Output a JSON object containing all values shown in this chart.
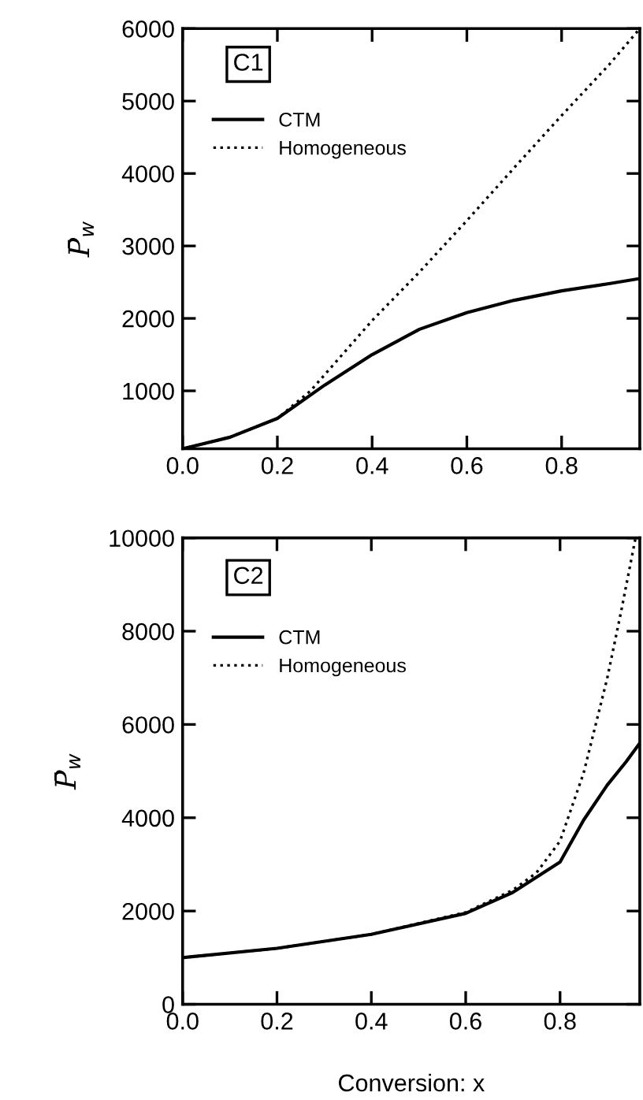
{
  "chart_data": [
    {
      "type": "line",
      "ylabel": "P̄$_{w}$",
      "annotations": [
        "C1"
      ],
      "legend": "top left",
      "xlim": [
        0,
        0.965
      ],
      "ylim": [
        200,
        6000
      ],
      "xticks": [
        {
          "value": 0.0,
          "label": "0.0"
        },
        0.2,
        0.4,
        0.6,
        0.8
      ],
      "yticks": [
        1000,
        2000,
        3000,
        4000,
        5000,
        6000
      ],
      "tick_labels": true,
      "series": [
        {
          "name": "CTM",
          "color": "#000000",
          "line_style": "solid",
          "x": [
            0,
            0.1,
            0.2,
            0.3,
            0.4,
            0.5,
            0.6,
            0.7,
            0.8,
            0.9,
            0.965
          ],
          "values": [
            200,
            360,
            620,
            1080,
            1500,
            1850,
            2080,
            2250,
            2380,
            2480,
            2550
          ]
        },
        {
          "name": "Homogeneous",
          "color": "#000000",
          "line_style": "dotted",
          "x": [
            0,
            0.1,
            0.2,
            0.27,
            0.4,
            0.5,
            0.6,
            0.7,
            0.8,
            0.9,
            0.965
          ],
          "values": [
            200,
            360,
            620,
            1000,
            1970,
            2640,
            3350,
            4080,
            4800,
            5500,
            6000
          ]
        }
      ]
    },
    {
      "type": "line",
      "xlabel": "Conversion: x",
      "ylabel": "P̄$_{w}$",
      "annotations": [
        "C2"
      ],
      "legend": "top left",
      "xlim": [
        0,
        0.969
      ],
      "ylim": [
        0,
        10000
      ],
      "xticks": [
        {
          "value": 0.0,
          "label": "0.0"
        },
        0.2,
        0.4,
        0.6,
        0.8
      ],
      "yticks": [
        0,
        2000,
        4000,
        6000,
        8000,
        10000
      ],
      "series": [
        {
          "name": "CTM",
          "color": "#000000",
          "line_style": "solid",
          "x": [
            0,
            0.2,
            0.4,
            0.6,
            0.7,
            0.8,
            0.85,
            0.9,
            0.94,
            0.969
          ],
          "values": [
            1000,
            1200,
            1500,
            1950,
            2400,
            3050,
            3950,
            4700,
            5200,
            5600
          ]
        },
        {
          "name": "Homogeneous",
          "color": "#000000",
          "line_style": "dotted",
          "x": [
            0,
            0.2,
            0.4,
            0.6,
            0.7,
            0.75,
            0.8,
            0.85,
            0.9,
            0.93,
            0.96
          ],
          "values": [
            1000,
            1200,
            1500,
            1970,
            2450,
            2820,
            3500,
            4960,
            6990,
            8450,
            10000
          ]
        }
      ]
    }
  ]
}
